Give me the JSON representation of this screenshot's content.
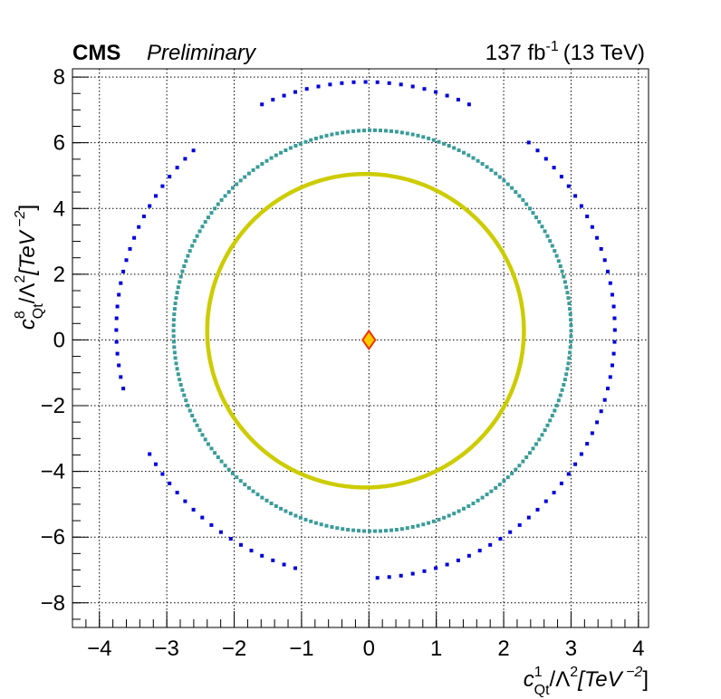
{
  "header": {
    "experiment": "CMS",
    "status": "Preliminary",
    "lumi_value": "137 fb",
    "lumi_exp": "-1",
    "energy": "(13 TeV)"
  },
  "chart_data": {
    "type": "scatter",
    "xlabel": {
      "sym": "c",
      "sup": "1",
      "sub": "Qt",
      "rest": "/Λ",
      "rest_sup": "2",
      "unit": "[TeV",
      "unit_sup": " −2",
      "close": "]"
    },
    "ylabel": {
      "sym": "c",
      "sup": "8",
      "sub": "Qt",
      "rest": "/Λ",
      "rest_sup": "2",
      "unit": "[TeV",
      "unit_sup": " −2",
      "close": "]"
    },
    "xlim": [
      -4.4,
      4.15
    ],
    "ylim": [
      -8.75,
      8.25
    ],
    "x_ticks": [
      -4,
      -3,
      -2,
      -1,
      0,
      1,
      2,
      3,
      4
    ],
    "y_ticks": [
      -8,
      -6,
      -4,
      -2,
      0,
      2,
      4,
      6,
      8
    ],
    "x_tick_labels": [
      "−4",
      "−3",
      "−2",
      "−1",
      "0",
      "1",
      "2",
      "3",
      "4"
    ],
    "y_tick_labels": [
      "−8",
      "−6",
      "−4",
      "−2",
      "0",
      "2",
      "4",
      "6",
      "8"
    ],
    "grid": true,
    "series": [
      {
        "color": "#0000dd",
        "marker": "square",
        "marker_size": 4,
        "cx": -0.05,
        "cy": 0.3,
        "rx": 3.7,
        "ry": 7.55,
        "n": 132,
        "gaps": [
          [
            0.14,
            0.18
          ],
          [
            0.32,
            0.37
          ],
          [
            0.54,
            0.58
          ],
          [
            0.71,
            0.75
          ]
        ]
      },
      {
        "color": "#3a9c98",
        "marker": "square",
        "marker_size": 4,
        "cx": 0.05,
        "cy": 0.28,
        "rx": 2.95,
        "ry": 6.1,
        "n": 230,
        "gaps": []
      },
      {
        "color": "#cccc00",
        "marker": "line",
        "line_width": 4.5,
        "cx": -0.05,
        "cy": 0.28,
        "rx": 2.35,
        "ry": 4.77,
        "n": 360,
        "gaps": []
      }
    ],
    "best_fit": {
      "x": 0.0,
      "y": 0.0,
      "fill": "#ffcc00",
      "stroke": "#ee3300"
    }
  }
}
